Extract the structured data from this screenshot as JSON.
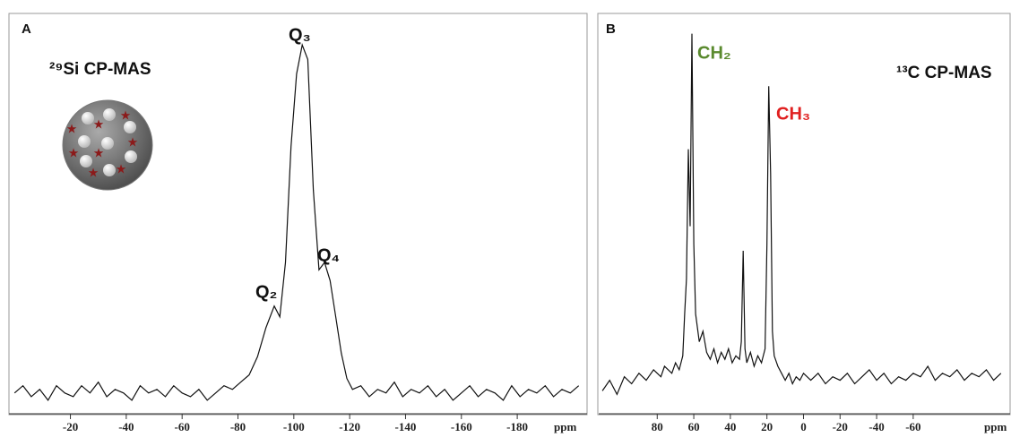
{
  "chart_data": [
    {
      "type": "line",
      "panel": "A",
      "title": "²⁹Si CP-MAS",
      "xlabel": "ppm",
      "annotations": [
        "Q₃",
        "Q₄",
        "Q₂"
      ],
      "color": "#111111",
      "xlim": [
        2,
        -205
      ],
      "ylim": [
        0,
        105
      ],
      "xticks": [
        -20,
        -40,
        -60,
        -80,
        -100,
        -120,
        -140,
        -160,
        -180
      ],
      "x": [
        0,
        -3,
        -6,
        -9,
        -12,
        -15,
        -18,
        -21,
        -24,
        -27,
        -30,
        -33,
        -36,
        -39,
        -42,
        -45,
        -48,
        -51,
        -54,
        -57,
        -60,
        -63,
        -66,
        -69,
        -72,
        -75,
        -78,
        -81,
        -84,
        -87,
        -90,
        -93,
        -95,
        -97,
        -99,
        -101,
        -103,
        -105,
        -107,
        -109,
        -111,
        -113,
        -115,
        -117,
        -119,
        -121,
        -124,
        -127,
        -130,
        -133,
        -136,
        -139,
        -142,
        -145,
        -148,
        -151,
        -154,
        -157,
        -160,
        -163,
        -166,
        -169,
        -172,
        -175,
        -178,
        -181,
        -184,
        -187,
        -190,
        -193,
        -196,
        -199,
        -202
      ],
      "values": [
        4,
        6,
        3,
        5,
        2,
        6,
        4,
        3,
        6,
        4,
        7,
        3,
        5,
        4,
        2,
        6,
        4,
        5,
        3,
        6,
        4,
        3,
        5,
        2,
        4,
        6,
        5,
        7,
        9,
        14,
        22,
        28,
        25,
        40,
        72,
        92,
        100,
        96,
        60,
        38,
        40,
        35,
        25,
        15,
        8,
        5,
        6,
        3,
        5,
        4,
        7,
        3,
        5,
        4,
        6,
        3,
        5,
        2,
        4,
        6,
        3,
        5,
        4,
        2,
        6,
        3,
        5,
        4,
        6,
        3,
        5,
        4,
        6
      ]
    },
    {
      "type": "line",
      "panel": "B",
      "title": "¹³C CP-MAS",
      "xlabel": "ppm",
      "annotations": [
        "CH₂",
        "CH₃"
      ],
      "color": "#111111",
      "xlim": [
        112,
        -113
      ],
      "ylim": [
        -6,
        104
      ],
      "xticks": [
        80,
        60,
        40,
        20,
        0,
        -20,
        -40,
        -60
      ],
      "x": [
        110,
        106,
        102,
        98,
        94,
        90,
        86,
        82,
        78,
        76,
        72,
        70,
        68,
        66,
        65,
        64,
        63,
        62,
        61,
        60,
        59,
        57,
        55,
        53,
        51,
        49,
        47,
        45,
        43,
        41,
        39,
        37,
        35,
        34,
        33,
        32,
        31,
        29,
        27,
        25,
        23,
        21,
        20,
        19,
        18,
        17,
        16,
        14,
        12,
        10,
        8,
        6,
        4,
        2,
        0,
        -4,
        -8,
        -12,
        -16,
        -20,
        -24,
        -28,
        -32,
        -36,
        -40,
        -44,
        -48,
        -52,
        -56,
        -60,
        -64,
        -68,
        -72,
        -76,
        -80,
        -84,
        -88,
        -92,
        -96,
        -100,
        -104,
        -108
      ],
      "values": [
        -2,
        1,
        -3,
        2,
        0,
        3,
        1,
        4,
        2,
        5,
        3,
        6,
        4,
        8,
        20,
        30,
        67,
        45,
        100,
        40,
        20,
        12,
        15,
        9,
        7,
        10,
        6,
        9,
        7,
        10,
        6,
        8,
        7,
        12,
        38,
        10,
        6,
        9,
        5,
        8,
        6,
        10,
        40,
        85,
        60,
        15,
        8,
        5,
        3,
        1,
        3,
        0,
        2,
        1,
        3,
        1,
        3,
        0,
        2,
        1,
        3,
        0,
        2,
        4,
        1,
        3,
        0,
        2,
        1,
        3,
        2,
        5,
        1,
        3,
        2,
        4,
        1,
        3,
        2,
        4,
        1,
        3
      ]
    }
  ]
}
